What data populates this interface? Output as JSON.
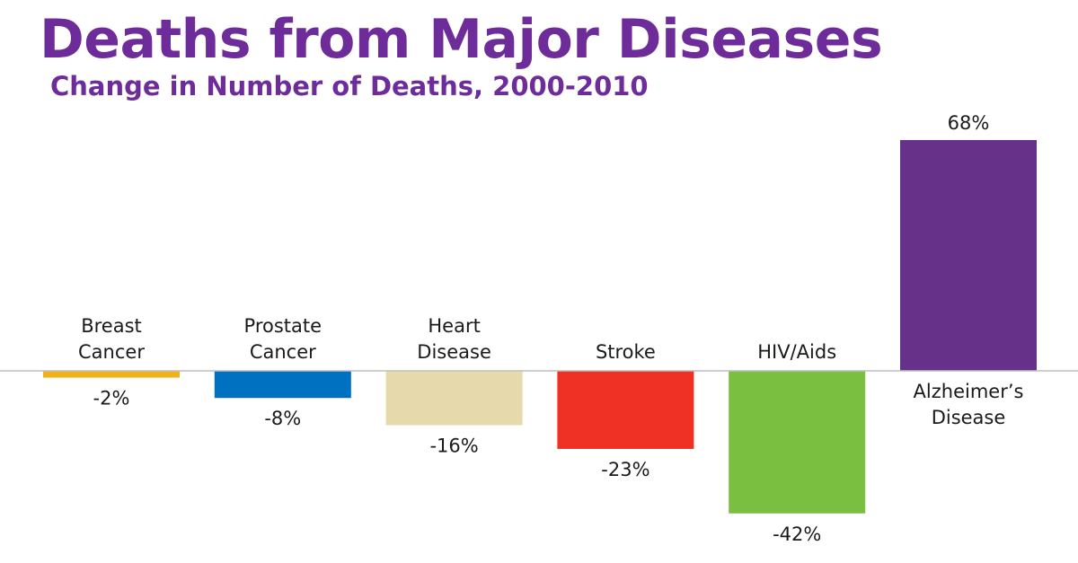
{
  "header": {
    "title": "Deaths from Major Diseases",
    "subtitle": "Change in Number of Deaths, 2000-2010"
  },
  "chart_data": {
    "type": "bar",
    "title": "Deaths from Major Diseases",
    "subtitle": "Change in Number of Deaths, 2000-2010",
    "categories": [
      [
        "Breast",
        "Cancer"
      ],
      [
        "Prostate",
        "Cancer"
      ],
      [
        "Heart",
        "Disease"
      ],
      [
        "Stroke"
      ],
      [
        "HIV/Aids"
      ],
      [
        "Alzheimer’s",
        "Disease"
      ]
    ],
    "values": [
      -2,
      -8,
      -16,
      -23,
      -42,
      68
    ],
    "value_labels": [
      "-2%",
      "-8%",
      "-16%",
      "-23%",
      "-42%",
      "68%"
    ],
    "unit": "%",
    "colors": [
      "#efb21a",
      "#0070c0",
      "#e6d9ac",
      "#ee3124",
      "#7bbf40",
      "#663189"
    ],
    "baseline_color": "#bfbfbf",
    "ylim": [
      -42,
      68
    ],
    "grid": false,
    "legend": "none",
    "xlabel": "",
    "ylabel": ""
  }
}
